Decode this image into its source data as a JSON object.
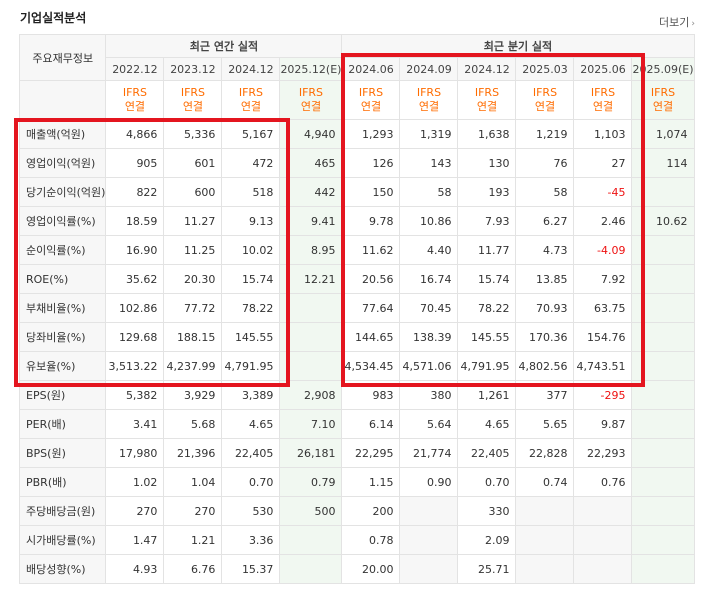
{
  "title": "기업실적분석",
  "more_label": "더보기",
  "header": {
    "row_label": "주요재무정보",
    "annual_group": "최근 연간 실적",
    "quarter_group": "최근 분기 실적",
    "periods": [
      "2022.12",
      "2023.12",
      "2024.12",
      "2025.12(E)",
      "2024.06",
      "2024.09",
      "2024.12",
      "2025.03",
      "2025.06",
      "2025.09(E)"
    ],
    "ifrs_top": "IFRS",
    "ifrs_bottom": "연결"
  },
  "rows": [
    {
      "label": "매출액(억원)",
      "values": [
        "4,866",
        "5,336",
        "5,167",
        "4,940",
        "1,293",
        "1,319",
        "1,638",
        "1,219",
        "1,103",
        "1,074"
      ]
    },
    {
      "label": "영업이익(억원)",
      "values": [
        "905",
        "601",
        "472",
        "465",
        "126",
        "143",
        "130",
        "76",
        "27",
        "114"
      ]
    },
    {
      "label": "당기순이익(억원)",
      "values": [
        "822",
        "600",
        "518",
        "442",
        "150",
        "58",
        "193",
        "58",
        "-45",
        ""
      ]
    },
    {
      "label": "영업이익률(%)",
      "values": [
        "18.59",
        "11.27",
        "9.13",
        "9.41",
        "9.78",
        "10.86",
        "7.93",
        "6.27",
        "2.46",
        "10.62"
      ]
    },
    {
      "label": "순이익률(%)",
      "values": [
        "16.90",
        "11.25",
        "10.02",
        "8.95",
        "11.62",
        "4.40",
        "11.77",
        "4.73",
        "-4.09",
        ""
      ]
    },
    {
      "label": "ROE(%)",
      "values": [
        "35.62",
        "20.30",
        "15.74",
        "12.21",
        "20.56",
        "16.74",
        "15.74",
        "13.85",
        "7.92",
        ""
      ]
    },
    {
      "label": "부채비율(%)",
      "values": [
        "102.86",
        "77.72",
        "78.22",
        "",
        "77.64",
        "70.45",
        "78.22",
        "70.93",
        "63.75",
        ""
      ]
    },
    {
      "label": "당좌비율(%)",
      "values": [
        "129.68",
        "188.15",
        "145.55",
        "",
        "144.65",
        "138.39",
        "145.55",
        "170.36",
        "154.76",
        ""
      ]
    },
    {
      "label": "유보율(%)",
      "values": [
        "3,513.22",
        "4,237.99",
        "4,791.95",
        "",
        "4,534.45",
        "4,571.06",
        "4,791.95",
        "4,802.56",
        "4,743.51",
        ""
      ]
    },
    {
      "label": "EPS(원)",
      "values": [
        "5,382",
        "3,929",
        "3,389",
        "2,908",
        "983",
        "380",
        "1,261",
        "377",
        "-295",
        ""
      ]
    },
    {
      "label": "PER(배)",
      "values": [
        "3.41",
        "5.68",
        "4.65",
        "7.10",
        "6.14",
        "5.64",
        "4.65",
        "5.65",
        "9.87",
        ""
      ]
    },
    {
      "label": "BPS(원)",
      "values": [
        "17,980",
        "21,396",
        "22,405",
        "26,181",
        "22,295",
        "21,774",
        "22,405",
        "22,828",
        "22,293",
        ""
      ]
    },
    {
      "label": "PBR(배)",
      "values": [
        "1.02",
        "1.04",
        "0.70",
        "0.79",
        "1.15",
        "0.90",
        "0.70",
        "0.74",
        "0.76",
        ""
      ]
    },
    {
      "label": "주당배당금(원)",
      "values": [
        "270",
        "270",
        "530",
        "500",
        "200",
        "",
        "330",
        "",
        "",
        ""
      ]
    },
    {
      "label": "시가배당률(%)",
      "values": [
        "1.47",
        "1.21",
        "3.36",
        "",
        "0.78",
        "",
        "2.09",
        "",
        "",
        ""
      ]
    },
    {
      "label": "배당성향(%)",
      "values": [
        "4.93",
        "6.76",
        "15.37",
        "",
        "20.00",
        "",
        "25.71",
        "",
        "",
        ""
      ]
    }
  ],
  "colors": {
    "highlight_box": "#e4151f",
    "negative": "#ee1111",
    "ifrs": "#ff6c00",
    "estimate_bg": "#f1f8f1"
  }
}
